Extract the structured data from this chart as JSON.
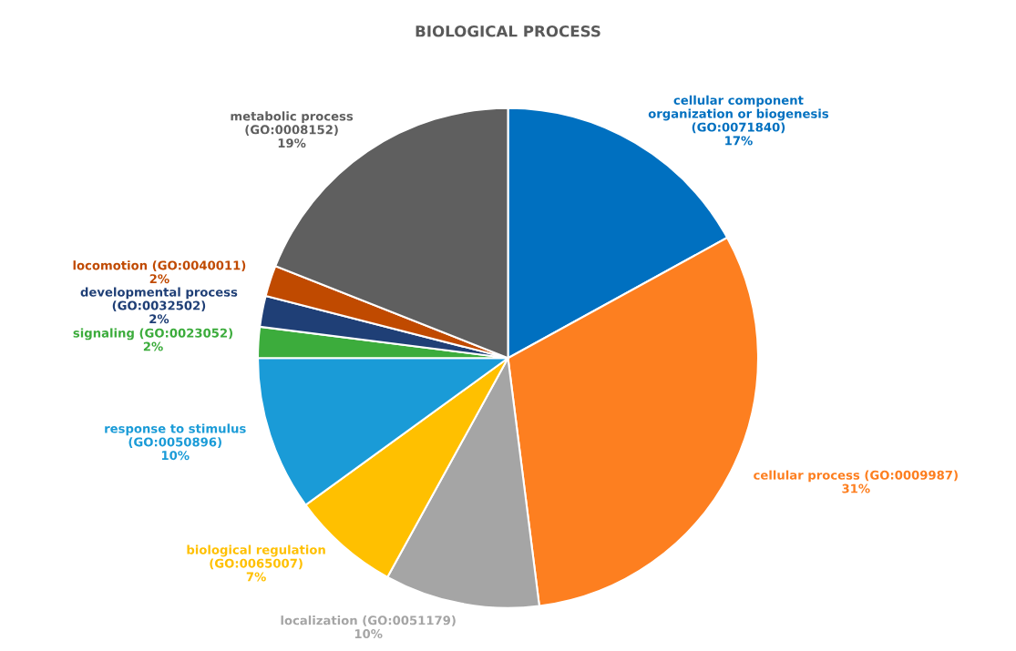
{
  "chart_data": {
    "type": "pie",
    "title": "BIOLOGICAL PROCESS",
    "categories": [
      "cellular component\norganization or biogenesis\n(GO:0071840)",
      "cellular process (GO:0009987)",
      "localization (GO:0051179)",
      "biological regulation\n(GO:0065007)",
      "response to stimulus\n(GO:0050896)",
      "signaling (GO:0023052)",
      "developmental process\n(GO:0032502)",
      "locomotion (GO:0040011)",
      "metabolic process\n(GO:0008152)"
    ],
    "values": [
      17,
      31,
      10,
      7,
      10,
      2,
      2,
      2,
      19
    ],
    "value_labels": [
      "17%",
      "31%",
      "10%",
      "7%",
      "10%",
      "2%",
      "2%",
      "2%",
      "19%"
    ],
    "colors": [
      "#0070c0",
      "#fd7f20",
      "#a5a5a5",
      "#ffc000",
      "#1a9bd7",
      "#3cac3c",
      "#1f3f76",
      "#c04a00",
      "#5f5f5f"
    ],
    "legend": false
  }
}
